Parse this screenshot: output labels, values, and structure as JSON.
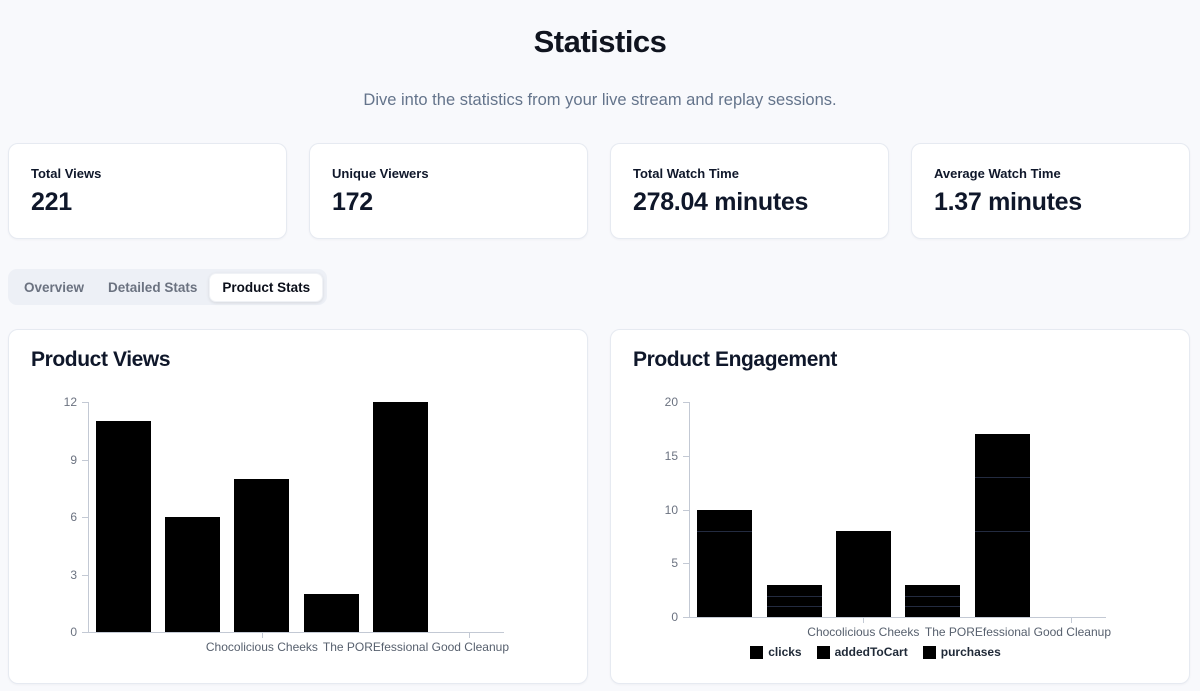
{
  "page": {
    "title": "Statistics",
    "subtitle": "Dive into the statistics from your live stream and replay sessions."
  },
  "stats": [
    {
      "label": "Total Views",
      "value": "221"
    },
    {
      "label": "Unique Viewers",
      "value": "172"
    },
    {
      "label": "Total Watch Time",
      "value": "278.04 minutes"
    },
    {
      "label": "Average Watch Time",
      "value": "1.37 minutes"
    }
  ],
  "tabs": [
    {
      "label": "Overview",
      "active": false
    },
    {
      "label": "Detailed Stats",
      "active": false
    },
    {
      "label": "Product Stats",
      "active": true
    }
  ],
  "colors": {
    "bar": "#000000",
    "segment_separator": "#232b40",
    "axis": "#c3c9d4",
    "muted_text": "#64748b"
  },
  "chart_data": [
    {
      "id": "product-views",
      "type": "bar",
      "title": "Product Views",
      "values": [
        11,
        6,
        8,
        2,
        12
      ],
      "n_slots": 6,
      "x_tick_labels": [
        {
          "text": "Chocolicious Cheeks",
          "slot": 2,
          "align": "center"
        },
        {
          "text": "The POREfessional Good Cleanup",
          "slot": 5,
          "align": "right"
        }
      ],
      "ylim": [
        0,
        12
      ],
      "yticks": [
        0,
        3,
        6,
        9,
        12
      ],
      "grid": false,
      "bar_color": "#000000"
    },
    {
      "id": "product-engagement",
      "type": "stacked-bar",
      "title": "Product Engagement",
      "series": [
        {
          "name": "clicks",
          "values": [
            8,
            1,
            8,
            1,
            8
          ]
        },
        {
          "name": "addedToCart",
          "values": [
            2,
            1,
            0,
            1,
            5
          ]
        },
        {
          "name": "purchases",
          "values": [
            0,
            1,
            0,
            1,
            4
          ]
        }
      ],
      "totals": [
        10,
        3,
        8,
        3,
        17
      ],
      "n_slots": 6,
      "x_tick_labels": [
        {
          "text": "Chocolicious Cheeks",
          "slot": 2,
          "align": "center"
        },
        {
          "text": "The POREfessional Good Cleanup",
          "slot": 5,
          "align": "right"
        }
      ],
      "ylim": [
        0,
        20
      ],
      "yticks": [
        0,
        5,
        10,
        15,
        20
      ],
      "grid": false,
      "legend": [
        "clicks",
        "addedToCart",
        "purchases"
      ],
      "legend_position": "bottom",
      "bar_color": "#000000"
    }
  ]
}
